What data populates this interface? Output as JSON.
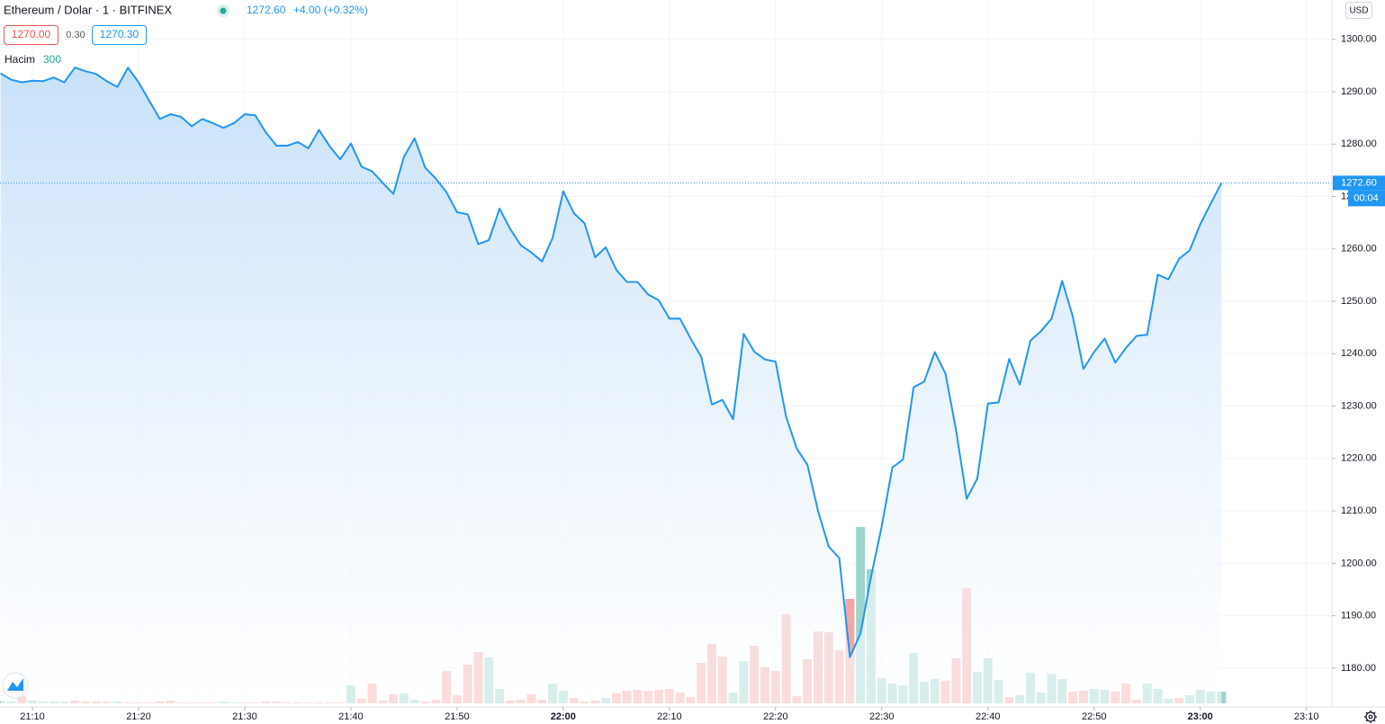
{
  "chart_data": {
    "type": "area",
    "title": "Ethereum / Dolar · 1 · BITFINEX",
    "last": {
      "value": 1272.6,
      "label": "1272.60"
    },
    "change": "+4.00 (+0.32%)",
    "bid": "1270.00",
    "spread": "0.30",
    "ask": "1270.30",
    "currency": "USD",
    "countdown": "00:04",
    "color": "#2196f3",
    "grid": true,
    "values": [
      1293.5,
      1292.3,
      1291.8,
      1292.1,
      1292,
      1292.7,
      1291.8,
      1294.6,
      1293.9,
      1293.4,
      1292,
      1290.9,
      1294.6,
      1291.8,
      1288.3,
      1284.8,
      1285.7,
      1285.2,
      1283.4,
      1284.8,
      1284,
      1283.1,
      1284,
      1285.7,
      1285.5,
      1282.2,
      1279.7,
      1279.7,
      1280.4,
      1279.2,
      1282.7,
      1279.6,
      1277.1,
      1280.1,
      1275.7,
      1274.8,
      1272.6,
      1270.5,
      1277.6,
      1281.1,
      1275.5,
      1273.4,
      1270.8,
      1267,
      1266.6,
      1260.9,
      1261.7,
      1267.7,
      1263.8,
      1260.7,
      1259.3,
      1257.6,
      1262.1,
      1271,
      1266.8,
      1264.9,
      1258.4,
      1260.3,
      1256,
      1253.7,
      1253.7,
      1251.3,
      1250.2,
      1246.7,
      1246.7,
      1242.9,
      1239.4,
      1230.3,
      1231.2,
      1227.5,
      1243.8,
      1240.4,
      1238.9,
      1238.5,
      1227.9,
      1221.9,
      1218.8,
      1210,
      1203.2,
      1201,
      1182.1,
      1186.6,
      1197.5,
      1207.1,
      1218.3,
      1219.8,
      1233.6,
      1234.7,
      1240.3,
      1236.2,
      1225.4,
      1212.3,
      1216.2,
      1230.5,
      1230.7,
      1239,
      1234.1,
      1242.5,
      1244.3,
      1246.7,
      1253.9,
      1247.1,
      1237.1,
      1240.3,
      1242.9,
      1238.3,
      1241.1,
      1243.4,
      1243.6,
      1255.1,
      1254.2,
      1258.1,
      1259.7,
      1264.7,
      1268.7,
      1272.6
    ],
    "xlim": [
      0,
      125.4
    ],
    "xticks": [
      {
        "value": 3,
        "label": "21:10"
      },
      {
        "value": 13,
        "label": "21:20"
      },
      {
        "value": 23,
        "label": "21:30"
      },
      {
        "value": 33,
        "label": "21:40"
      },
      {
        "value": 43,
        "label": "21:50"
      },
      {
        "value": 53,
        "label": "22:00"
      },
      {
        "value": 63,
        "label": "22:10"
      },
      {
        "value": 73,
        "label": "22:20"
      },
      {
        "value": 83,
        "label": "22:30"
      },
      {
        "value": 93,
        "label": "22:40"
      },
      {
        "value": 103,
        "label": "22:50"
      },
      {
        "value": 113,
        "label": "23:00"
      },
      {
        "value": 123,
        "label": "23:10"
      }
    ],
    "ylim": [
      1172.6,
      1307.5
    ],
    "yticks": [
      {
        "value": 1180,
        "label": "1180.00"
      },
      {
        "value": 1190,
        "label": "1190.00"
      },
      {
        "value": 1200,
        "label": "1200.00"
      },
      {
        "value": 1210,
        "label": "1210.00"
      },
      {
        "value": 1220,
        "label": "1220.00"
      },
      {
        "value": 1230,
        "label": "1230.00"
      },
      {
        "value": 1240,
        "label": "1240.00"
      },
      {
        "value": 1250,
        "label": "1250.00"
      },
      {
        "value": 1260,
        "label": "1260.00"
      },
      {
        "value": 1270,
        "label": "1270.00"
      },
      {
        "value": 1280,
        "label": "1280.00"
      },
      {
        "value": 1290,
        "label": "1290.00"
      },
      {
        "value": 1300,
        "label": "1300.00"
      }
    ],
    "volume": {
      "name": "Hacim",
      "length": "300",
      "ylim": [
        0,
        400
      ],
      "colors": {
        "up": "#9bd5cd",
        "down": "#f3a7a5"
      },
      "values": [
        3,
        2,
        8,
        3,
        2,
        2,
        2,
        3,
        2,
        2,
        2,
        2,
        1,
        1,
        1,
        2,
        3,
        1,
        1,
        1,
        1,
        2,
        1,
        1,
        1,
        2,
        2,
        1,
        1,
        1,
        1,
        1,
        1,
        20,
        5,
        22,
        3,
        10,
        11,
        4,
        2,
        4,
        36,
        9,
        43,
        57,
        51,
        16,
        3,
        4,
        10,
        4,
        22,
        14,
        6,
        2,
        3,
        6,
        11,
        14,
        15,
        14,
        15,
        16,
        12,
        7,
        45,
        66,
        52,
        12,
        47,
        64,
        40,
        36,
        99,
        8,
        49,
        80,
        79,
        59,
        116,
        196,
        149,
        28,
        22,
        20,
        56,
        24,
        27,
        25,
        50,
        128,
        35,
        50,
        26,
        7,
        9,
        34,
        12,
        33,
        27,
        13,
        14,
        16,
        15,
        13,
        22,
        4,
        22,
        16,
        5,
        6,
        9,
        15,
        13,
        13
      ],
      "sides": [
        "up",
        "up",
        "down",
        "up",
        "up",
        "up",
        "up",
        "down",
        "down",
        "down",
        "down",
        "up",
        "down",
        "down",
        "down",
        "down",
        "down",
        "down",
        "down",
        "down",
        "down",
        "up",
        "up",
        "down",
        "down",
        "down",
        "down",
        "down",
        "down",
        "down",
        "down",
        "down",
        "down",
        "up",
        "down",
        "down",
        "down",
        "down",
        "up",
        "up",
        "down",
        "down",
        "down",
        "down",
        "down",
        "down",
        "up",
        "up",
        "down",
        "down",
        "down",
        "down",
        "up",
        "up",
        "down",
        "down",
        "down",
        "up",
        "down",
        "down",
        "down",
        "down",
        "down",
        "down",
        "down",
        "down",
        "down",
        "down",
        "down",
        "up",
        "up",
        "down",
        "down",
        "down",
        "down",
        "down",
        "down",
        "down",
        "down",
        "down",
        "down",
        "up",
        "up",
        "up",
        "up",
        "up",
        "up",
        "up",
        "up",
        "down",
        "down",
        "down",
        "up",
        "up",
        "up",
        "down",
        "up",
        "up",
        "up",
        "up",
        "up",
        "down",
        "down",
        "up",
        "up",
        "down",
        "down",
        "down",
        "up",
        "up",
        "up",
        "down",
        "up",
        "up",
        "up",
        "up"
      ]
    }
  }
}
